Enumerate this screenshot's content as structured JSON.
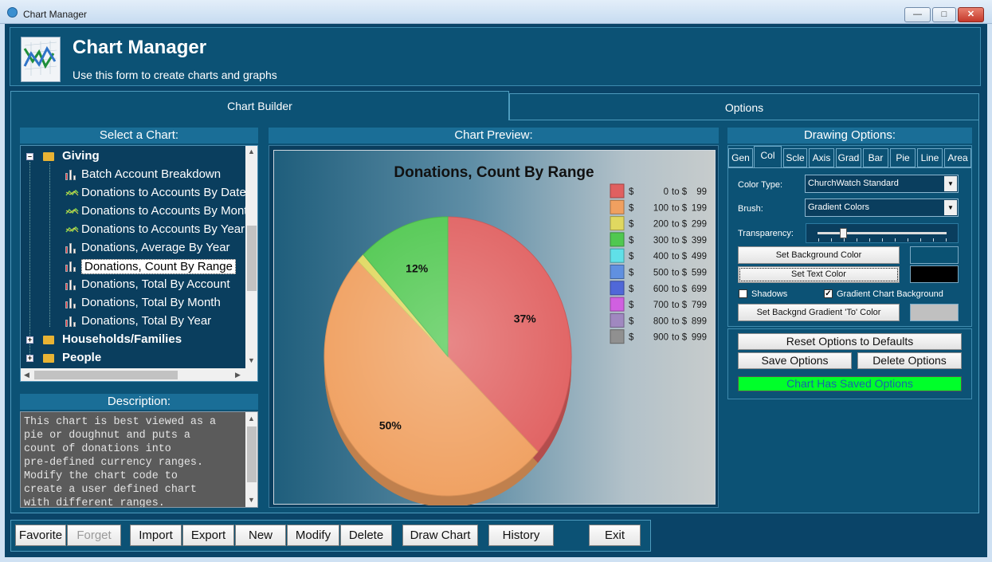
{
  "window": {
    "title": "Chart Manager"
  },
  "header": {
    "title": "Chart Manager",
    "subtitle": "Use this form to create charts and graphs"
  },
  "tabs": [
    {
      "label": "Chart Builder",
      "active": true
    },
    {
      "label": "Options",
      "active": false
    }
  ],
  "select_chart": {
    "heading": "Select a Chart:",
    "tree": {
      "giving": {
        "label": "Giving",
        "expanded": true
      },
      "items": [
        "Batch Account Breakdown",
        "Donations to Accounts By Date",
        "Donations to Accounts By Month",
        "Donations to Accounts By Year",
        "Donations, Average By Year",
        "Donations, Count By Range",
        "Donations, Total By Account",
        "Donations, Total By Month",
        "Donations, Total By Year"
      ],
      "item_icons": [
        "bar-chart-icon",
        "line-chart-icon",
        "line-chart-icon",
        "line-chart-icon",
        "bar-chart-icon",
        "bar-chart-icon",
        "bar-chart-icon",
        "bar-chart-icon",
        "bar-chart-icon"
      ],
      "selected": "Donations, Count By Range",
      "households": {
        "label": "Households/Families",
        "expanded": false
      },
      "people": {
        "label": "People",
        "expanded": false
      }
    }
  },
  "description": {
    "heading": "Description:",
    "text": "This chart is best viewed as a\npie or doughnut and puts a\ncount of donations into\npre-defined currency ranges.\nModify the chart code to\ncreate a user defined chart\nwith different ranges."
  },
  "preview": {
    "heading": "Chart Preview:",
    "chart_data": {
      "type": "pie",
      "title": "Donations, Count By Range",
      "slices": [
        {
          "label": "$ 0 to $ 99",
          "value": 37,
          "data_label": "37%",
          "color": "#e06060"
        },
        {
          "label": "$ 100 to $ 199",
          "value": 50,
          "data_label": "50%",
          "color": "#f0a060"
        },
        {
          "label": "$ 200 to $ 299",
          "value": 1,
          "data_label": "",
          "color": "#e0d860"
        },
        {
          "label": "$ 300 to $ 399",
          "value": 12,
          "data_label": "12%",
          "color": "#50c850"
        },
        {
          "label": "$ 400 to $ 499",
          "value": 0,
          "data_label": "",
          "color": "#60e0e8"
        },
        {
          "label": "$ 500 to $ 599",
          "value": 0,
          "data_label": "",
          "color": "#6090e0"
        },
        {
          "label": "$ 600 to $ 699",
          "value": 0,
          "data_label": "",
          "color": "#5068d8"
        },
        {
          "label": "$ 700 to $ 799",
          "value": 0,
          "data_label": "",
          "color": "#d060e0"
        },
        {
          "label": "$ 800 to $ 899",
          "value": 0,
          "data_label": "",
          "color": "#a088c0"
        },
        {
          "label": "$ 900 to $ 999",
          "value": 0,
          "data_label": "",
          "color": "#909090"
        }
      ],
      "legend": {
        "placement": "top-right",
        "entries": [
          {
            "from": "$",
            "lo": "0",
            "to": "to $",
            "hi": "99"
          },
          {
            "from": "$",
            "lo": "100",
            "to": "to $",
            "hi": "199"
          },
          {
            "from": "$",
            "lo": "200",
            "to": "to $",
            "hi": "299"
          },
          {
            "from": "$",
            "lo": "300",
            "to": "to $",
            "hi": "399"
          },
          {
            "from": "$",
            "lo": "400",
            "to": "to $",
            "hi": "499"
          },
          {
            "from": "$",
            "lo": "500",
            "to": "to $",
            "hi": "599"
          },
          {
            "from": "$",
            "lo": "600",
            "to": "to $",
            "hi": "699"
          },
          {
            "from": "$",
            "lo": "700",
            "to": "to $",
            "hi": "799"
          },
          {
            "from": "$",
            "lo": "800",
            "to": "to $",
            "hi": "899"
          },
          {
            "from": "$",
            "lo": "900",
            "to": "to $",
            "hi": "999"
          }
        ]
      },
      "style": "3d",
      "background": "gradient"
    }
  },
  "drawing_options": {
    "heading": "Drawing Options:",
    "tabs": [
      "Gen",
      "Col",
      "Scle",
      "Axis",
      "Grad",
      "Bar",
      "Pie",
      "Line",
      "Area"
    ],
    "active_tab": "Col",
    "color_type": {
      "label": "Color Type:",
      "value": "ChurchWatch Standard"
    },
    "brush": {
      "label": "Brush:",
      "value": "Gradient Colors"
    },
    "transparency": {
      "label": "Transparency:",
      "level": 0.2
    },
    "set_background_color": {
      "label": "Set Background Color",
      "swatch": "#0a5273"
    },
    "set_text_color": {
      "label": "Set Text Color",
      "swatch": "#000000"
    },
    "shadows": {
      "label": "Shadows",
      "checked": false
    },
    "gradient_chart_background": {
      "label": "Gradient Chart Background",
      "checked": true
    },
    "set_gradient_to_color": {
      "label": "Set Backgnd Gradient 'To' Color",
      "swatch": "#c0c0c0"
    },
    "reset_button": "Reset Options to Defaults",
    "save_button": "Save Options",
    "delete_button": "Delete Options",
    "status": "Chart Has Saved Options"
  },
  "toolbar": {
    "favorite": "Favorite",
    "forget": "Forget",
    "import": "Import",
    "export": "Export",
    "new": "New",
    "modify": "Modify",
    "delete": "Delete",
    "draw_chart": "Draw Chart",
    "history": "History",
    "exit": "Exit"
  }
}
